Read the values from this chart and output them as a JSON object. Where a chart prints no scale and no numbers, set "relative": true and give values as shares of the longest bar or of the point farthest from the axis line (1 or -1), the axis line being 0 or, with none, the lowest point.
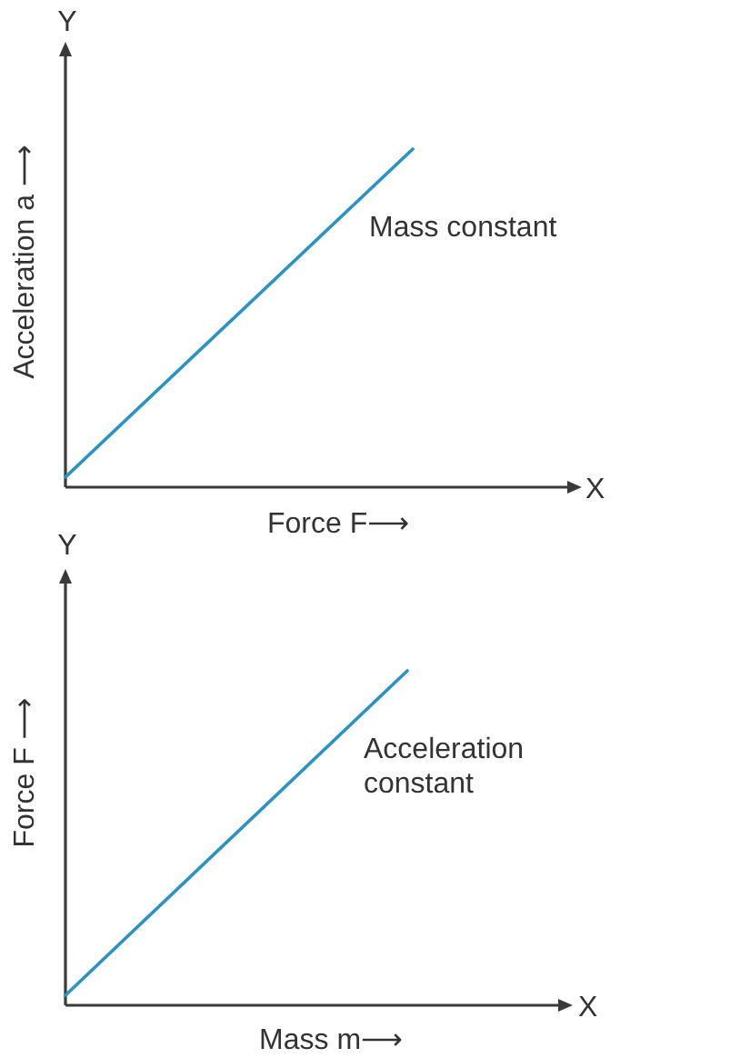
{
  "chart_data": [
    {
      "type": "line",
      "relative": true,
      "categories": [
        null,
        null
      ],
      "series": [
        {
          "name": "Mass constant",
          "color": "#2b93c1",
          "values": [
            0.03,
            1
          ]
        }
      ],
      "xlabel": "Force F⟶",
      "ylabel": "Acceleration a ⟶",
      "annotations": [
        "Y",
        "X"
      ]
    },
    {
      "type": "line",
      "relative": true,
      "categories": [
        null,
        null
      ],
      "series": [
        {
          "name": "Acceleration constant",
          "color": "#2b93c1",
          "values": [
            0.03,
            1
          ]
        }
      ],
      "xlabel": "Mass m⟶",
      "ylabel": "Force F ⟶",
      "annotations": [
        "Y",
        "X"
      ]
    }
  ]
}
